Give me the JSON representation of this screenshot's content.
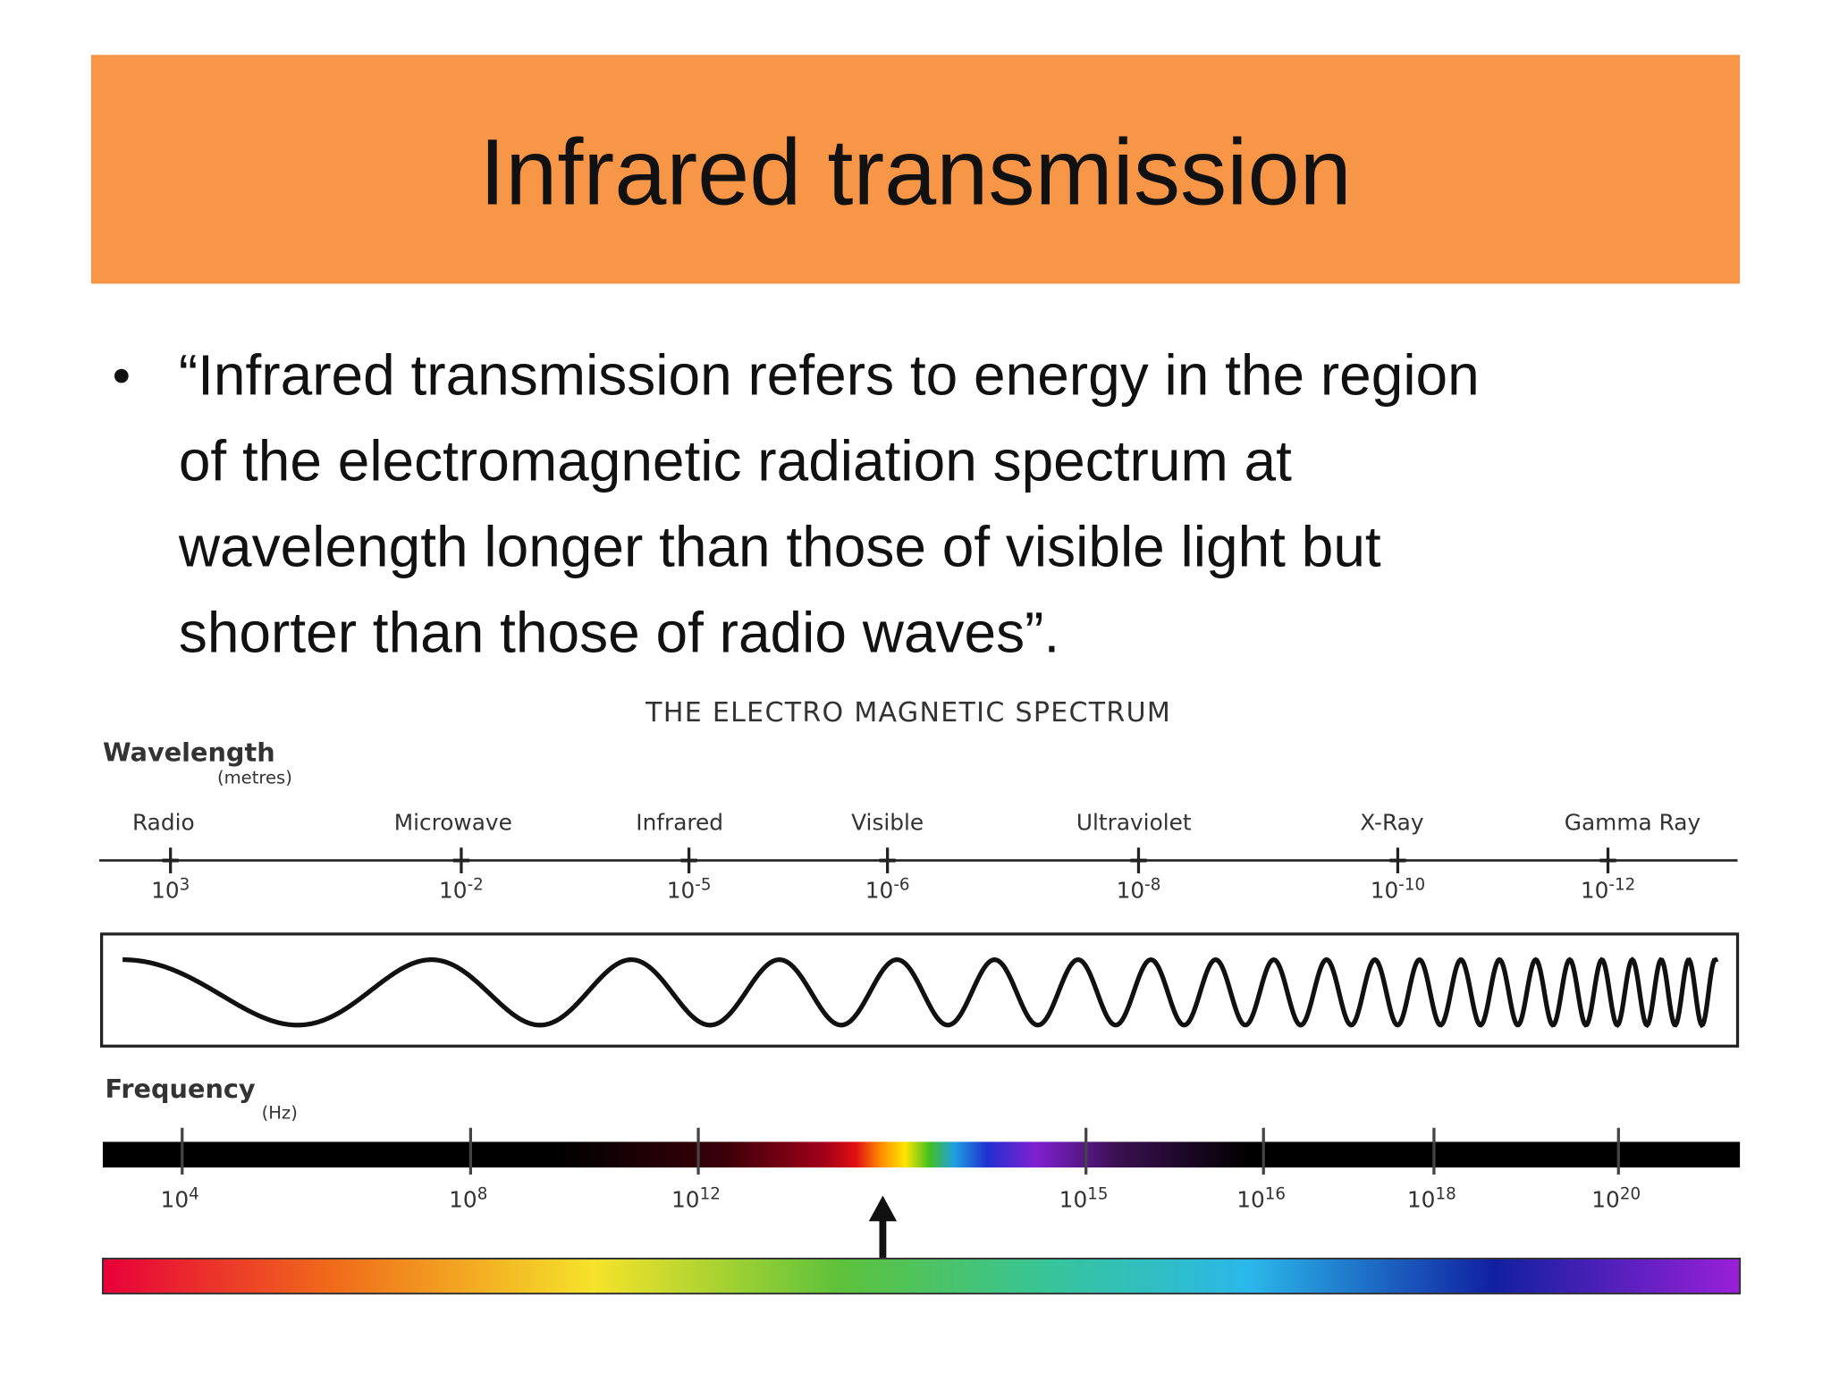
{
  "header": {
    "title": "Infrared transmission"
  },
  "body": {
    "bullet": {
      "lines": [
        "“Infrared transmission refers to energy in the region",
        "of the electromagnetic radiation spectrum at",
        "wavelength longer than those of visible light but",
        "shorter than those of radio waves”."
      ]
    }
  },
  "figure": {
    "title": "THE ELECTRO MAGNETIC SPECTRUM",
    "wavelength_label": "Wavelength",
    "wavelength_unit": "(metres)",
    "bands": [
      {
        "name": "Radio",
        "base": "10",
        "exp": "3"
      },
      {
        "name": "Microwave",
        "base": "10",
        "exp": "-2"
      },
      {
        "name": "Infrared",
        "base": "10",
        "exp": "-5"
      },
      {
        "name": "Visible",
        "base": "10",
        "exp": "-6"
      },
      {
        "name": "Ultraviolet",
        "base": "10",
        "exp": "-8"
      },
      {
        "name": "X-Ray",
        "base": "10",
        "exp": "-10"
      },
      {
        "name": "Gamma Ray",
        "base": "10",
        "exp": "-12"
      }
    ],
    "frequency_label": "Frequency",
    "frequency_unit": "(Hz)",
    "frequency_ticks": [
      {
        "base": "10",
        "exp": "4"
      },
      {
        "base": "10",
        "exp": "8"
      },
      {
        "base": "10",
        "exp": "12"
      },
      {
        "base": "10",
        "exp": "15"
      },
      {
        "base": "10",
        "exp": "16"
      },
      {
        "base": "10",
        "exp": "18"
      },
      {
        "base": "10",
        "exp": "20"
      }
    ]
  }
}
